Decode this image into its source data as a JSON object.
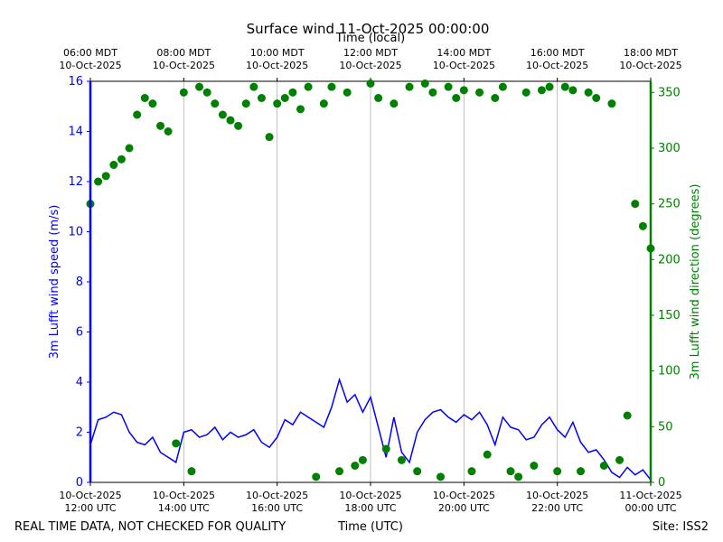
{
  "chart_data": {
    "type": "line",
    "title": "Surface wind 11-Oct-2025 00:00:00",
    "x_label": "Time (UTC)",
    "x2_label": "Time (local)",
    "y_label": "3m Lufft wind speed (m/s)",
    "y2_label": "3m Lufft wind direction (degrees)",
    "footnote_left": "REAL TIME DATA, NOT CHECKED FOR QUALITY",
    "footnote_right": "Site: ISS2",
    "xlim": [
      "2025-10-10T12:00",
      "2025-10-11T00:00"
    ],
    "xticks": [
      {
        "value": "2025-10-10T12:00",
        "label": "10-Oct-2025\n12:00 UTC"
      },
      {
        "value": "2025-10-10T14:00",
        "label": "10-Oct-2025\n14:00 UTC"
      },
      {
        "value": "2025-10-10T16:00",
        "label": "10-Oct-2025\n16:00 UTC"
      },
      {
        "value": "2025-10-10T18:00",
        "label": "10-Oct-2025\n18:00 UTC"
      },
      {
        "value": "2025-10-10T20:00",
        "label": "10-Oct-2025\n20:00 UTC"
      },
      {
        "value": "2025-10-10T22:00",
        "label": "10-Oct-2025\n22:00 UTC"
      },
      {
        "value": "2025-10-11T00:00",
        "label": "11-Oct-2025\n00:00 UTC"
      }
    ],
    "x2ticks": [
      {
        "value": "2025-10-10T12:00",
        "label": "06:00 MDT\n10-Oct-2025"
      },
      {
        "value": "2025-10-10T14:00",
        "label": "08:00 MDT\n10-Oct-2025"
      },
      {
        "value": "2025-10-10T16:00",
        "label": "10:00 MDT\n10-Oct-2025"
      },
      {
        "value": "2025-10-10T18:00",
        "label": "12:00 MDT\n10-Oct-2025"
      },
      {
        "value": "2025-10-10T20:00",
        "label": "14:00 MDT\n10-Oct-2025"
      },
      {
        "value": "2025-10-10T22:00",
        "label": "16:00 MDT\n10-Oct-2025"
      },
      {
        "value": "2025-10-11T00:00",
        "label": "18:00 MDT\n10-Oct-2025"
      }
    ],
    "ylim": [
      0,
      16
    ],
    "yticks": [
      0,
      2,
      4,
      6,
      8,
      10,
      12,
      14,
      16
    ],
    "y2lim": [
      0,
      360
    ],
    "y2ticks": [
      0,
      50,
      100,
      150,
      200,
      250,
      300,
      350
    ],
    "grid": true,
    "x": [
      "2025-10-10T12:00",
      "2025-10-10T12:10",
      "2025-10-10T12:20",
      "2025-10-10T12:30",
      "2025-10-10T12:40",
      "2025-10-10T12:50",
      "2025-10-10T13:00",
      "2025-10-10T13:10",
      "2025-10-10T13:20",
      "2025-10-10T13:30",
      "2025-10-10T13:40",
      "2025-10-10T13:50",
      "2025-10-10T14:00",
      "2025-10-10T14:10",
      "2025-10-10T14:20",
      "2025-10-10T14:30",
      "2025-10-10T14:40",
      "2025-10-10T14:50",
      "2025-10-10T15:00",
      "2025-10-10T15:10",
      "2025-10-10T15:20",
      "2025-10-10T15:30",
      "2025-10-10T15:40",
      "2025-10-10T15:50",
      "2025-10-10T16:00",
      "2025-10-10T16:10",
      "2025-10-10T16:20",
      "2025-10-10T16:30",
      "2025-10-10T16:40",
      "2025-10-10T16:50",
      "2025-10-10T17:00",
      "2025-10-10T17:10",
      "2025-10-10T17:20",
      "2025-10-10T17:30",
      "2025-10-10T17:40",
      "2025-10-10T17:50",
      "2025-10-10T18:00",
      "2025-10-10T18:10",
      "2025-10-10T18:20",
      "2025-10-10T18:30",
      "2025-10-10T18:40",
      "2025-10-10T18:50",
      "2025-10-10T19:00",
      "2025-10-10T19:10",
      "2025-10-10T19:20",
      "2025-10-10T19:30",
      "2025-10-10T19:40",
      "2025-10-10T19:50",
      "2025-10-10T20:00",
      "2025-10-10T20:10",
      "2025-10-10T20:20",
      "2025-10-10T20:30",
      "2025-10-10T20:40",
      "2025-10-10T20:50",
      "2025-10-10T21:00",
      "2025-10-10T21:10",
      "2025-10-10T21:20",
      "2025-10-10T21:30",
      "2025-10-10T21:40",
      "2025-10-10T21:50",
      "2025-10-10T22:00",
      "2025-10-10T22:10",
      "2025-10-10T22:20",
      "2025-10-10T22:30",
      "2025-10-10T22:40",
      "2025-10-10T22:50",
      "2025-10-10T23:00",
      "2025-10-10T23:10",
      "2025-10-10T23:20",
      "2025-10-10T23:30",
      "2025-10-10T23:40",
      "2025-10-10T23:50",
      "2025-10-11T00:00"
    ],
    "series": [
      {
        "type": "line",
        "color": "#0000ff",
        "values": [
          1.5,
          2.5,
          2.6,
          2.8,
          2.7,
          2.0,
          1.6,
          1.5,
          1.8,
          1.2,
          1.0,
          0.8,
          2.0,
          2.1,
          1.8,
          1.9,
          2.2,
          1.7,
          2.0,
          1.8,
          1.9,
          2.1,
          1.6,
          1.4,
          1.8,
          2.5,
          2.3,
          2.8,
          2.6,
          2.4,
          2.2,
          3.0,
          4.1,
          3.2,
          3.5,
          2.8,
          3.4,
          2.2,
          1.0,
          2.6,
          1.2,
          0.8,
          2.0,
          2.5,
          2.8,
          2.9,
          2.6,
          2.4,
          2.7,
          2.5,
          2.8,
          2.3,
          1.5,
          2.6,
          2.2,
          2.1,
          1.7,
          1.8,
          2.3,
          2.6,
          2.1,
          1.8,
          2.4,
          1.6,
          1.2,
          1.3,
          0.9,
          0.4,
          0.2,
          0.6,
          0.3,
          0.5,
          0.1
        ]
      },
      {
        "type": "scatter",
        "axis": "y2",
        "color": "#008000",
        "values": [
          250,
          270,
          275,
          285,
          290,
          300,
          330,
          345,
          340,
          320,
          315,
          35,
          350,
          10,
          355,
          350,
          340,
          330,
          325,
          320,
          340,
          355,
          345,
          310,
          340,
          345,
          350,
          335,
          355,
          5,
          340,
          355,
          10,
          350,
          15,
          20,
          358,
          345,
          30,
          340,
          20,
          355,
          10,
          358,
          350,
          5,
          355,
          345,
          352,
          10,
          350,
          25,
          345,
          355,
          10,
          5,
          350,
          15,
          352,
          355,
          10,
          355,
          352,
          10,
          350,
          345,
          15,
          340,
          20,
          60,
          250,
          230,
          210
        ]
      }
    ]
  }
}
